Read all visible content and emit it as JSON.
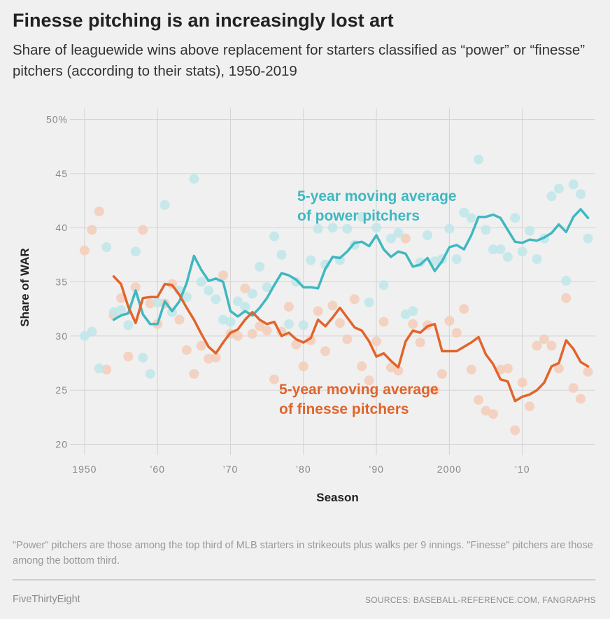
{
  "header": {
    "title": "Finesse pitching is an increasingly lost art",
    "subtitle": "Share of leaguewide wins above replacement for starters classified as “power” or “finesse” pitchers (according to their stats), 1950-2019"
  },
  "footer": {
    "note": "\"Power\" pitchers are those among the top third of MLB starters in strikeouts plus walks per 9 innings. \"Finesse\" pitchers are those among the bottom third.",
    "brand": "FiveThirtyEight",
    "sources": "SOURCES: BASEBALL-REFERENCE.COM, FANGRAPHS"
  },
  "chart_data": {
    "type": "line",
    "xlabel": "Season",
    "ylabel": "Share of WAR",
    "xlim": [
      1948,
      2020
    ],
    "ylim": [
      19,
      51
    ],
    "x_ticks": [
      1950,
      1960,
      1970,
      1980,
      1990,
      2000,
      2010
    ],
    "x_tick_labels": [
      "1950",
      "’60",
      "’70",
      "’80",
      "’90",
      "2000",
      "’10"
    ],
    "y_ticks": [
      20,
      25,
      30,
      35,
      40,
      45,
      50
    ],
    "y_tick_labels": [
      "20",
      "25",
      "30",
      "35",
      "40",
      "45",
      "50%"
    ],
    "grid": true,
    "colors": {
      "power": "#3fb8c0",
      "finesse": "#e2642b",
      "power_dots": "#bfe6e9",
      "finesse_dots": "#f5cdb8"
    },
    "series": [
      {
        "name": "5-year moving average of power pitchers",
        "annotation": [
          "5-year moving average",
          "of power pitchers"
        ],
        "color": "#3fb8c0",
        "x": [
          1954,
          1955,
          1956,
          1957,
          1958,
          1959,
          1960,
          1961,
          1962,
          1963,
          1964,
          1965,
          1966,
          1967,
          1968,
          1969,
          1970,
          1971,
          1972,
          1973,
          1974,
          1975,
          1976,
          1977,
          1978,
          1979,
          1980,
          1981,
          1982,
          1983,
          1984,
          1985,
          1986,
          1987,
          1988,
          1989,
          1990,
          1991,
          1992,
          1993,
          1994,
          1995,
          1996,
          1997,
          1998,
          1999,
          2000,
          2001,
          2002,
          2003,
          2004,
          2005,
          2006,
          2007,
          2008,
          2009,
          2010,
          2011,
          2012,
          2013,
          2014,
          2015,
          2016,
          2017,
          2018,
          2019
        ],
        "y": [
          31.5,
          31.9,
          32.1,
          34.2,
          32.0,
          31.1,
          31.1,
          33.2,
          32.3,
          33.2,
          34.9,
          37.4,
          36.1,
          35.1,
          35.3,
          35.0,
          32.3,
          31.8,
          32.3,
          31.9,
          32.6,
          33.5,
          34.7,
          35.8,
          35.6,
          35.2,
          34.5,
          34.5,
          34.4,
          36.2,
          37.3,
          37.2,
          37.8,
          38.6,
          38.7,
          38.3,
          39.3,
          38.0,
          37.3,
          37.8,
          37.6,
          36.4,
          36.6,
          37.2,
          36.0,
          36.9,
          38.2,
          38.4,
          38.0,
          39.3,
          41.0,
          41.0,
          41.2,
          40.9,
          39.8,
          38.7,
          38.6,
          38.9,
          38.8,
          39.1,
          39.5,
          40.3,
          39.6,
          41.0,
          41.7,
          40.9
        ]
      },
      {
        "name": "5-year moving average of finesse pitchers",
        "annotation": [
          "5-year moving average",
          "of finesse pitchers"
        ],
        "color": "#e2642b",
        "x": [
          1954,
          1955,
          1956,
          1957,
          1958,
          1959,
          1960,
          1961,
          1962,
          1963,
          1964,
          1965,
          1966,
          1967,
          1968,
          1969,
          1970,
          1971,
          1972,
          1973,
          1974,
          1975,
          1976,
          1977,
          1978,
          1979,
          1980,
          1981,
          1982,
          1983,
          1984,
          1985,
          1986,
          1987,
          1988,
          1989,
          1990,
          1991,
          1992,
          1993,
          1994,
          1995,
          1996,
          1997,
          1998,
          1999,
          2000,
          2001,
          2002,
          2003,
          2004,
          2005,
          2006,
          2007,
          2008,
          2009,
          2010,
          2011,
          2012,
          2013,
          2014,
          2015,
          2016,
          2017,
          2018,
          2019
        ],
        "y": [
          35.5,
          34.8,
          32.7,
          31.2,
          33.5,
          33.6,
          33.6,
          34.8,
          34.7,
          33.8,
          32.6,
          31.5,
          30.2,
          29.0,
          28.4,
          29.4,
          30.3,
          30.6,
          31.5,
          32.2,
          31.5,
          31.1,
          31.3,
          30.0,
          30.3,
          29.7,
          29.4,
          29.8,
          31.5,
          30.9,
          31.7,
          32.6,
          31.7,
          30.8,
          30.5,
          29.5,
          28.1,
          28.4,
          27.7,
          27.1,
          29.5,
          30.5,
          30.3,
          30.9,
          31.1,
          28.6,
          28.6,
          28.6,
          29.0,
          29.4,
          29.9,
          28.3,
          27.4,
          26.0,
          25.8,
          24.0,
          24.4,
          24.6,
          25.0,
          25.7,
          27.2,
          27.5,
          29.6,
          28.8,
          27.6,
          27.2
        ]
      }
    ],
    "scatter": {
      "power": {
        "x": [
          1950,
          1951,
          1952,
          1953,
          1954,
          1955,
          1956,
          1957,
          1958,
          1959,
          1960,
          1961,
          1962,
          1963,
          1964,
          1965,
          1966,
          1967,
          1968,
          1969,
          1970,
          1971,
          1972,
          1973,
          1974,
          1975,
          1976,
          1977,
          1978,
          1979,
          1980,
          1981,
          1982,
          1983,
          1984,
          1985,
          1986,
          1987,
          1988,
          1989,
          1990,
          1991,
          1992,
          1993,
          1994,
          1995,
          1996,
          1997,
          1998,
          1999,
          2000,
          2001,
          2002,
          2003,
          2004,
          2005,
          2006,
          2007,
          2008,
          2009,
          2010,
          2011,
          2012,
          2013,
          2014,
          2015,
          2016,
          2017,
          2018,
          2019
        ],
        "y": [
          30.0,
          30.4,
          27.0,
          38.2,
          32.2,
          32.4,
          31.0,
          37.8,
          28.0,
          26.5,
          33.1,
          42.1,
          32.2,
          34.2,
          33.6,
          44.5,
          35.0,
          34.2,
          33.4,
          31.5,
          31.3,
          33.2,
          32.7,
          33.9,
          36.4,
          34.5,
          39.2,
          37.5,
          31.1,
          35.0,
          31.0,
          37.0,
          39.9,
          36.6,
          40.0,
          37.0,
          39.9,
          38.4,
          41.0,
          33.1,
          40.0,
          34.7,
          39.0,
          39.5,
          32.0,
          32.3,
          36.8,
          39.3,
          36.9,
          37.1,
          39.9,
          37.1,
          41.4,
          40.9,
          46.3,
          39.8,
          38.0,
          38.0,
          37.3,
          40.9,
          37.8,
          39.7,
          37.1,
          39.0,
          42.9,
          43.6,
          35.1,
          44.0,
          43.1,
          39.0
        ]
      },
      "finesse": {
        "x": [
          1950,
          1951,
          1952,
          1953,
          1954,
          1955,
          1956,
          1957,
          1958,
          1959,
          1960,
          1961,
          1962,
          1963,
          1964,
          1965,
          1966,
          1967,
          1968,
          1969,
          1970,
          1971,
          1972,
          1973,
          1974,
          1975,
          1976,
          1977,
          1978,
          1979,
          1980,
          1981,
          1982,
          1983,
          1984,
          1985,
          1986,
          1987,
          1988,
          1989,
          1990,
          1991,
          1992,
          1993,
          1994,
          1995,
          1996,
          1997,
          1998,
          1999,
          2000,
          2001,
          2002,
          2003,
          2004,
          2005,
          2006,
          2007,
          2008,
          2009,
          2010,
          2011,
          2012,
          2013,
          2014,
          2015,
          2016,
          2017,
          2018,
          2019
        ],
        "y": [
          37.9,
          39.8,
          41.5,
          26.9,
          31.9,
          33.5,
          28.1,
          34.5,
          39.8,
          33.0,
          31.1,
          33.0,
          34.8,
          31.5,
          28.7,
          26.5,
          29.1,
          27.9,
          28.0,
          35.6,
          30.2,
          30.0,
          34.4,
          30.2,
          30.9,
          30.5,
          26.0,
          30.4,
          32.7,
          29.2,
          27.2,
          29.6,
          32.3,
          28.6,
          32.8,
          31.2,
          29.7,
          33.4,
          27.2,
          25.9,
          29.5,
          31.3,
          27.1,
          26.8,
          39.0,
          31.1,
          29.4,
          31.0,
          25.0,
          26.5,
          31.4,
          30.3,
          32.5,
          26.9,
          24.1,
          23.1,
          22.8,
          26.9,
          27.0,
          21.3,
          25.7,
          23.5,
          29.1,
          29.7,
          29.1,
          27.0,
          33.5,
          25.2,
          24.2,
          26.7
        ]
      }
    }
  }
}
